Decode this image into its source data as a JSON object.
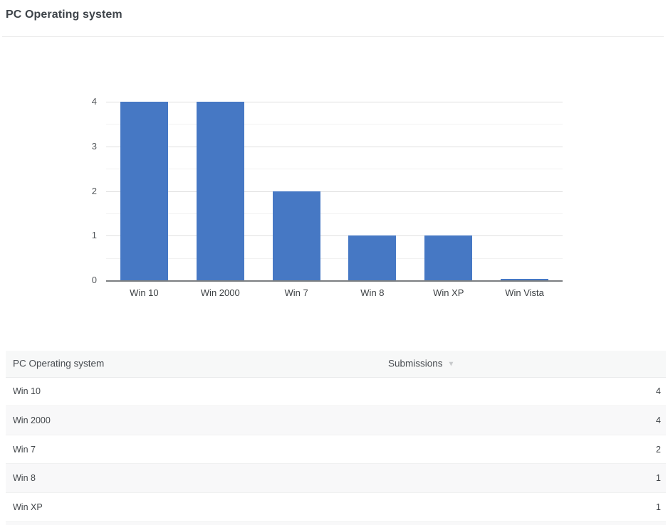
{
  "page": {
    "title": "PC Operating system"
  },
  "chart_data": {
    "type": "bar",
    "title": "PC Operating system",
    "categories": [
      "Win 10",
      "Win 2000",
      "Win 7",
      "Win 8",
      "Win XP",
      "Win Vista"
    ],
    "values": [
      4,
      4,
      2,
      1,
      1,
      0
    ],
    "xlabel": "",
    "ylabel": "",
    "ylim": [
      0,
      4
    ],
    "yticks": [
      0,
      1,
      2,
      3,
      4
    ],
    "minor_gridline_step": 0.5,
    "grid": true,
    "legend": "none",
    "bar_color": "#4678c4",
    "axis_color": "#7b7e81"
  },
  "table": {
    "columns": [
      {
        "label": "PC Operating system"
      },
      {
        "label": "Submissions",
        "sort_icon": "▼",
        "sort_direction": "desc"
      }
    ],
    "rows": [
      {
        "label": "Win 10",
        "value": "4"
      },
      {
        "label": "Win 2000",
        "value": "4"
      },
      {
        "label": "Win 7",
        "value": "2"
      },
      {
        "label": "Win 8",
        "value": "1"
      },
      {
        "label": "Win XP",
        "value": "1"
      }
    ]
  }
}
